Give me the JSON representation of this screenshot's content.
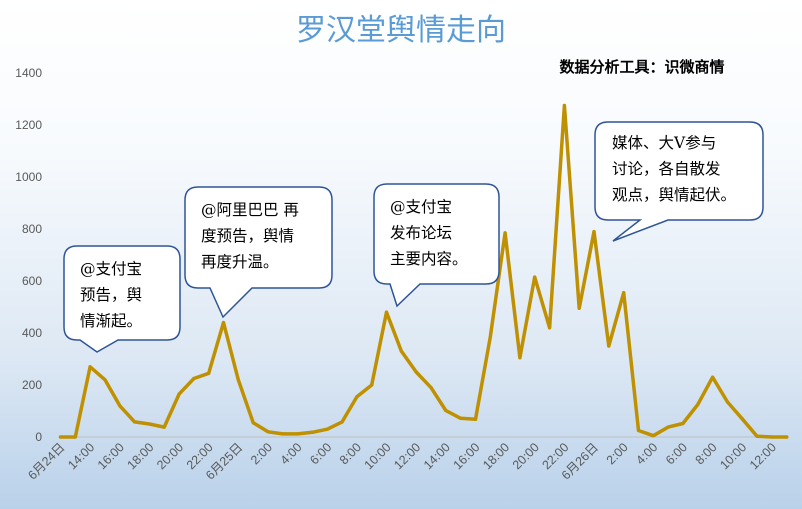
{
  "chart_data": {
    "type": "line",
    "title": "罗汉堂舆情走向",
    "subtitle": "数据分析工具：识微商情",
    "xlabel": "",
    "ylabel": "",
    "ylim": [
      0,
      1400
    ],
    "yticks": [
      "0",
      "200",
      "400",
      "600",
      "800",
      "1000",
      "1200",
      "1400"
    ],
    "x_tick_labels": [
      "6月24日",
      "14:00",
      "16:00",
      "18:00",
      "20:00",
      "22:00",
      "6月25日",
      "2:00",
      "4:00",
      "6:00",
      "8:00",
      "10:00",
      "12:00",
      "14:00",
      "16:00",
      "18:00",
      "20:00",
      "22:00",
      "6月26日",
      "2:00",
      "4:00",
      "6:00",
      "8:00",
      "10:00",
      "12:00"
    ],
    "series": [
      {
        "color": "#bf9000",
        "values": [
          0,
          0,
          270,
          220,
          120,
          58,
          50,
          38,
          165,
          225,
          245,
          440,
          220,
          55,
          20,
          12,
          12,
          18,
          30,
          58,
          155,
          200,
          480,
          330,
          250,
          190,
          102,
          72,
          68,
          385,
          785,
          305,
          615,
          420,
          1275,
          495,
          790,
          350,
          555,
          25,
          5,
          38,
          52,
          125,
          230,
          135,
          70,
          3,
          0,
          0
        ]
      }
    ],
    "grid": false,
    "legend": "none",
    "annotations": [
      {
        "lines": [
          "@支付宝",
          "预告，舆",
          "情渐起。"
        ]
      },
      {
        "lines": [
          "@阿里巴巴 再",
          "度预告，舆情",
          "再度升温。"
        ]
      },
      {
        "lines": [
          "@支付宝",
          "发布论坛",
          "主要内容。"
        ]
      },
      {
        "lines": [
          "媒体、大V参与",
          "讨论，各自散发",
          "观点，舆情起伏。"
        ]
      }
    ]
  }
}
